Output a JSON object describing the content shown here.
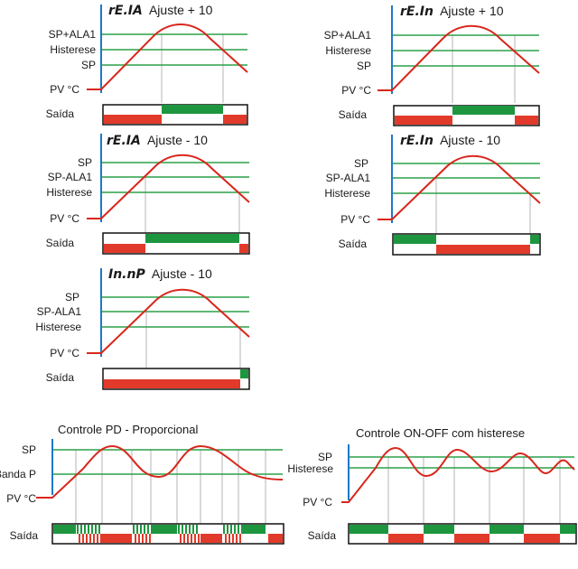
{
  "colors": {
    "axis": "#1e78c8",
    "level_line": "#2ca048",
    "curve": "#d9261c",
    "output_on": "#1e9640",
    "output_alt": "#e23a2a",
    "guide": "#b4b4b4",
    "text": "#1a1a1a"
  },
  "diagrams": [
    {
      "id": "reva-plus",
      "mode_code": "rE.IA",
      "title": "Ajuste + 10",
      "levels": [
        "SP+ALA1",
        "Histerese",
        "SP"
      ],
      "pv_label": "PV °C",
      "output_label": "Saída"
    },
    {
      "id": "rein-plus",
      "mode_code": "rE.In",
      "title": "Ajuste + 10",
      "levels": [
        "SP+ALA1",
        "Histerese",
        "SP"
      ],
      "pv_label": "PV °C",
      "output_label": "Saída"
    },
    {
      "id": "reva-minus",
      "mode_code": "rE.IA",
      "title": "Ajuste - 10",
      "levels": [
        "SP",
        "SP-ALA1",
        "Histerese"
      ],
      "pv_label": "PV °C",
      "output_label": "Saída"
    },
    {
      "id": "rein-minus",
      "mode_code": "rE.In",
      "title": "Ajuste - 10",
      "levels": [
        "SP",
        "SP-ALA1",
        "Histerese"
      ],
      "pv_label": "PV °C",
      "output_label": "Saída"
    },
    {
      "id": "inop-minus",
      "mode_code": "In.nP",
      "title": "Ajuste - 10",
      "levels": [
        "SP",
        "SP-ALA1",
        "Histerese"
      ],
      "pv_label": "PV °C",
      "output_label": "Saída"
    },
    {
      "id": "pd",
      "mode_code": "",
      "title": "Controle PD - Proporcional",
      "levels": [
        "SP",
        "Banda P"
      ],
      "pv_label": "PV °C",
      "output_label": "Saída"
    },
    {
      "id": "onoff",
      "mode_code": "",
      "title": "Controle ON-OFF com histerese",
      "levels": [
        "SP",
        "Histerese"
      ],
      "pv_label": "PV °C",
      "output_label": "Saída"
    }
  ]
}
